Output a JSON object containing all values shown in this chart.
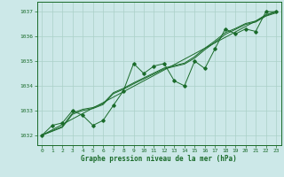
{
  "title": "",
  "xlabel": "Graphe pression niveau de la mer (hPa)",
  "ylabel": "",
  "bg_color": "#cce8e8",
  "grid_color": "#aad0c8",
  "line_color": "#1a6b2a",
  "text_color": "#1a6b2a",
  "ylim": [
    1031.6,
    1037.4
  ],
  "xlim": [
    -0.5,
    23.5
  ],
  "yticks": [
    1032,
    1033,
    1034,
    1035,
    1036,
    1037
  ],
  "xticks": [
    0,
    1,
    2,
    3,
    4,
    5,
    6,
    7,
    8,
    9,
    10,
    11,
    12,
    13,
    14,
    15,
    16,
    17,
    18,
    19,
    20,
    21,
    22,
    23
  ],
  "main_data": [
    1032.0,
    1032.4,
    1032.5,
    1033.0,
    1032.8,
    1032.4,
    1032.6,
    1033.2,
    1033.8,
    1034.9,
    1034.5,
    1034.8,
    1034.9,
    1034.2,
    1034.0,
    1035.0,
    1034.7,
    1035.5,
    1036.3,
    1036.1,
    1036.3,
    1036.2,
    1037.0,
    1037.0
  ],
  "trend_line1": [
    1032.0,
    1032.22,
    1032.44,
    1032.66,
    1032.88,
    1033.1,
    1033.32,
    1033.54,
    1033.76,
    1033.98,
    1034.2,
    1034.42,
    1034.64,
    1034.86,
    1035.08,
    1035.3,
    1035.52,
    1035.74,
    1035.96,
    1036.18,
    1036.4,
    1036.62,
    1036.84,
    1037.0
  ],
  "trend_line2": [
    1032.0,
    1032.18,
    1032.36,
    1032.9,
    1033.05,
    1033.12,
    1033.28,
    1033.72,
    1033.9,
    1034.12,
    1034.32,
    1034.52,
    1034.72,
    1034.82,
    1034.92,
    1035.18,
    1035.52,
    1035.82,
    1036.15,
    1036.32,
    1036.52,
    1036.62,
    1036.88,
    1037.0
  ],
  "trend_line3": [
    1032.0,
    1032.16,
    1032.32,
    1032.85,
    1033.0,
    1033.08,
    1033.24,
    1033.68,
    1033.86,
    1034.08,
    1034.28,
    1034.48,
    1034.68,
    1034.78,
    1034.88,
    1035.12,
    1035.46,
    1035.76,
    1036.08,
    1036.28,
    1036.48,
    1036.58,
    1036.82,
    1036.95
  ]
}
